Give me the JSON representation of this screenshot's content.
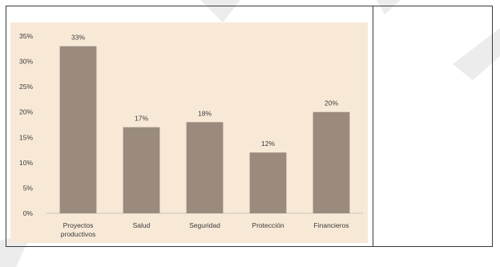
{
  "chart_data": {
    "type": "bar",
    "categories": [
      [
        "Proyectos",
        "productivos"
      ],
      [
        "Salud"
      ],
      [
        "Seguridad"
      ],
      [
        "Protección"
      ],
      [
        "Financieros"
      ]
    ],
    "values": [
      33,
      17,
      18,
      12,
      20
    ],
    "value_labels": [
      "33%",
      "17%",
      "18%",
      "12%",
      "20%"
    ],
    "y_ticks": [
      "0%",
      "5%",
      "10%",
      "15%",
      "20%",
      "25%",
      "30%",
      "35%"
    ],
    "ylim": [
      0,
      35
    ],
    "grid": false,
    "title": "",
    "xlabel": "",
    "ylabel": ""
  },
  "colors": {
    "bar": "#9a8b7e",
    "chart_background": "#f8e9d7",
    "axis": "#c9c3bd",
    "text": "#3a3a3a",
    "watermark": "#e6e6e6"
  }
}
